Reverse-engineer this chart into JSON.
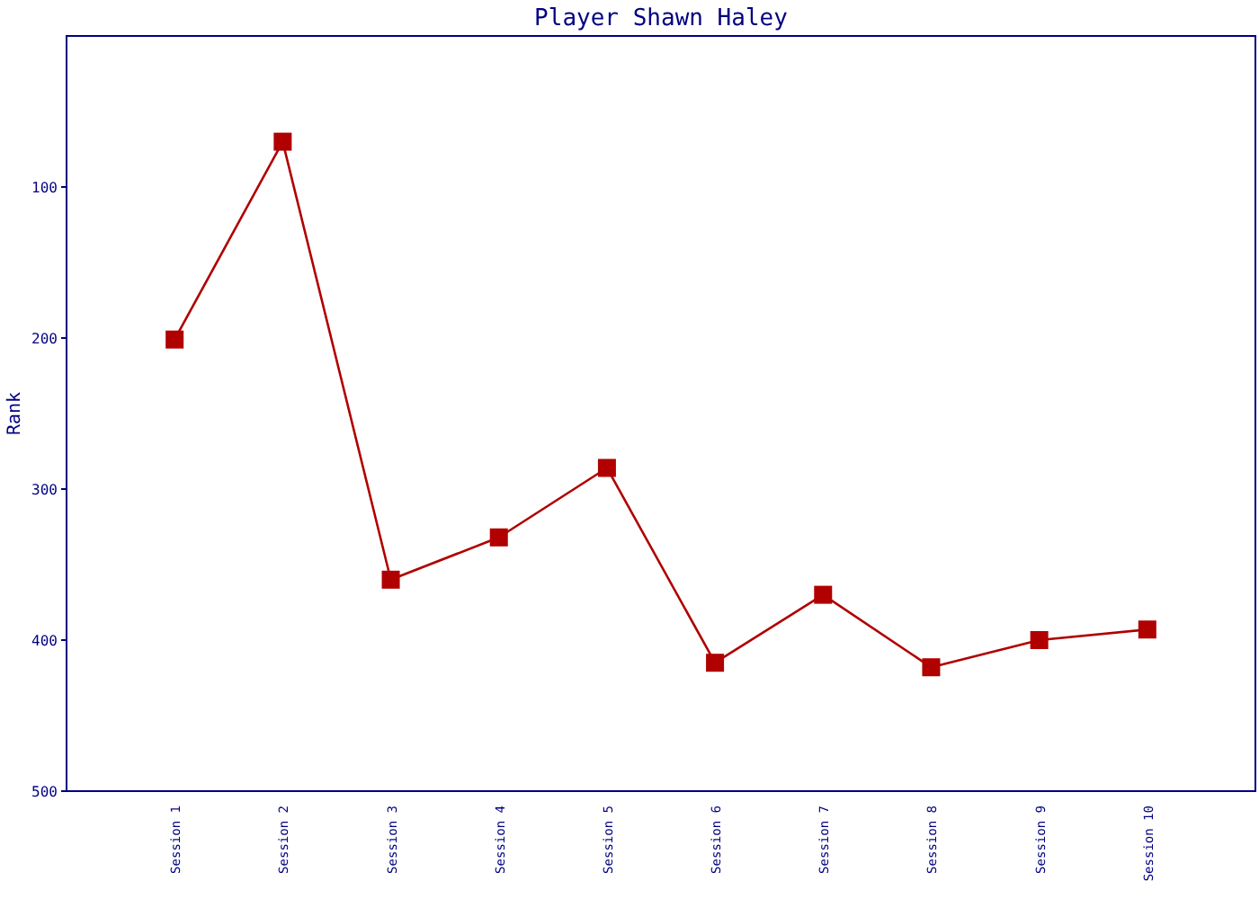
{
  "chart_data": {
    "type": "line",
    "title": "Player Shawn Haley",
    "ylabel": "Rank",
    "categories": [
      "Session 1",
      "Session 2",
      "Session 3",
      "Session 4",
      "Session 5",
      "Session 6",
      "Session 7",
      "Session 8",
      "Session 9",
      "Session 10"
    ],
    "series": [
      {
        "color": "#b00000",
        "values": [
          201,
          70,
          360,
          332,
          286,
          415,
          370,
          418,
          400,
          393
        ]
      }
    ],
    "ylim": [
      500,
      0
    ],
    "yticks": [
      100,
      200,
      300,
      400,
      500
    ],
    "marker": "square",
    "grid": false
  }
}
